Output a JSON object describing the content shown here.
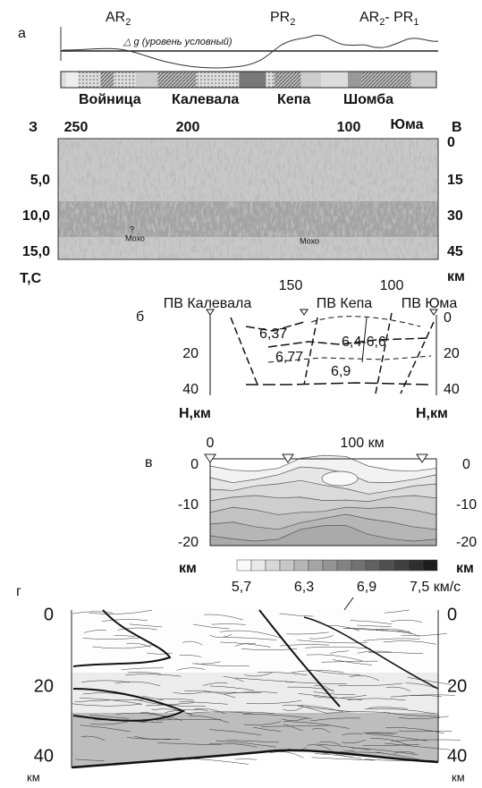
{
  "panel_a": {
    "label": "а",
    "ages": [
      {
        "text": "AR",
        "sub": "2"
      },
      {
        "text": "PR",
        "sub": "2"
      },
      {
        "text": "AR",
        "sub": "2",
        "tail": "- PR",
        "tail_sub": "1"
      }
    ],
    "gravity_label": "△ g (уровень условный)",
    "regions": [
      "Войница",
      "Калевала",
      "Кепа",
      "Шомба"
    ]
  },
  "section": {
    "west": "З",
    "east": "В",
    "top_ticks": [
      "250",
      "200",
      "100",
      "Юма"
    ],
    "left_ticks": [
      "5,0",
      "10,0",
      "15,0"
    ],
    "left_unit": "Т,С",
    "right_ticks": [
      "0",
      "15",
      "30",
      "45"
    ],
    "right_unit": "км",
    "question": "?",
    "moho": [
      "Мохо",
      "Мохо"
    ]
  },
  "panel_b": {
    "label": "б",
    "top_ticks": [
      "150",
      "100"
    ],
    "stations": [
      "ПВ Калевала",
      "ПВ Кепа",
      "ПВ Юма"
    ],
    "velocities": [
      "6,37",
      "6,4-6,6",
      "6,77",
      "6,9"
    ],
    "left_ticks": [
      "20",
      "40"
    ],
    "right_ticks": [
      "0",
      "20",
      "40"
    ],
    "left_unit": "Н,км",
    "right_unit": "Н,км"
  },
  "panel_c": {
    "label": "в",
    "top_ticks": [
      "0",
      "100 км"
    ],
    "left_ticks": [
      "0",
      "-10",
      "-20"
    ],
    "right_ticks": [
      "0",
      "-10",
      "-20"
    ],
    "left_unit": "км",
    "right_unit": "км",
    "scale": [
      "5,7",
      "6,3",
      "6,9",
      "7,5 км/с"
    ]
  },
  "panel_d": {
    "label": "г",
    "left_ticks": [
      "0",
      "20",
      "40"
    ],
    "right_ticks": [
      "0",
      "20",
      "40"
    ],
    "left_unit": "км",
    "right_unit": "км"
  }
}
